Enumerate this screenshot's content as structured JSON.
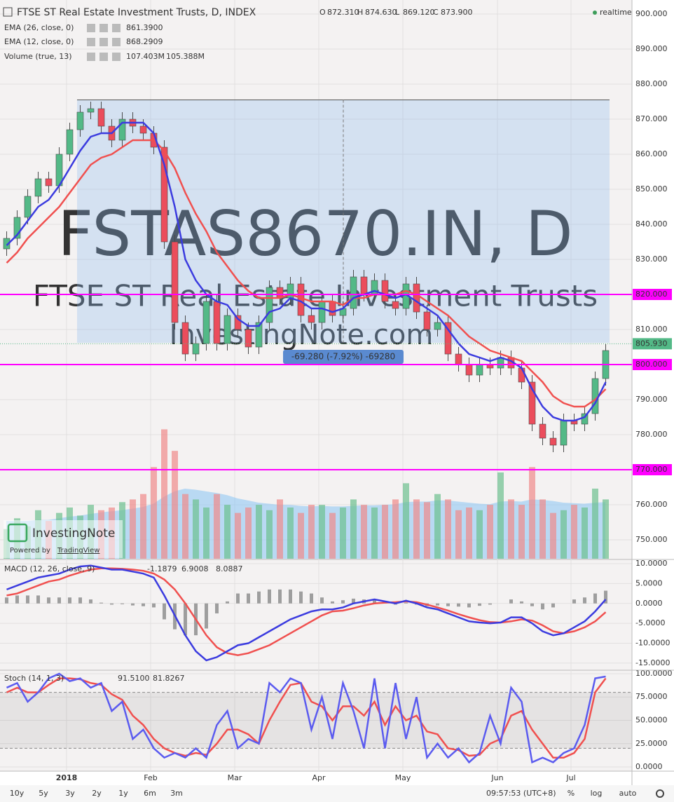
{
  "chart_data": [
    {
      "type": "candlestick",
      "title": "FTSE ST Real Estate Investment Trusts, D, INDEX",
      "ohlc_labels": [
        "O",
        "H",
        "L",
        "C"
      ],
      "ohlc_values": [
        "872.310",
        "874.630",
        "869.120",
        "873.900"
      ],
      "status": "realtime",
      "watermark": [
        "FSTAS8670.IN, D",
        "FTSE ST Real Estate Investment Trusts",
        "InvestingNote.com"
      ],
      "logo": "InvestingNote",
      "powered": "Powered by",
      "powered_link": "TradingView",
      "categories": [
        null,
        null,
        null,
        null,
        null,
        null,
        "2018",
        null,
        null,
        null,
        null,
        null,
        null,
        null,
        "Feb",
        null,
        null,
        null,
        null,
        null,
        null,
        null,
        "Mar",
        null,
        null,
        null,
        null,
        null,
        null,
        null,
        "Apr",
        null,
        null,
        null,
        null,
        null,
        null,
        null,
        "May",
        null,
        null,
        null,
        null,
        null,
        null,
        null,
        null,
        "Jun",
        null,
        null,
        null,
        null,
        null,
        null,
        "Jul",
        null,
        null,
        null
      ],
      "open": [
        833,
        836,
        842,
        848,
        853,
        851,
        860,
        867,
        872,
        873,
        868,
        864,
        870,
        868,
        866,
        862,
        835,
        812,
        803,
        806,
        818,
        806,
        814,
        810,
        805,
        812,
        822,
        819,
        823,
        814,
        812,
        818,
        814,
        816,
        825,
        820,
        824,
        818,
        816,
        823,
        815,
        810,
        812,
        803,
        800,
        797,
        800,
        799,
        802,
        799,
        795,
        783,
        779,
        777,
        784,
        783,
        786,
        796
      ],
      "high": [
        838,
        844,
        850,
        855,
        855,
        862,
        869,
        874,
        875,
        875,
        870,
        872,
        872,
        870,
        868,
        864,
        837,
        814,
        808,
        820,
        820,
        816,
        816,
        812,
        814,
        824,
        824,
        825,
        825,
        816,
        820,
        820,
        818,
        827,
        827,
        826,
        826,
        820,
        825,
        825,
        817,
        814,
        814,
        805,
        802,
        802,
        802,
        804,
        804,
        801,
        797,
        785,
        781,
        786,
        786,
        788,
        798,
        806
      ],
      "low": [
        831,
        834,
        840,
        846,
        849,
        849,
        858,
        865,
        870,
        866,
        862,
        862,
        866,
        864,
        860,
        833,
        810,
        801,
        801,
        804,
        804,
        804,
        808,
        803,
        803,
        810,
        817,
        817,
        812,
        810,
        810,
        812,
        812,
        814,
        818,
        818,
        816,
        814,
        814,
        813,
        808,
        808,
        801,
        798,
        795,
        795,
        797,
        797,
        797,
        793,
        781,
        777,
        775,
        775,
        781,
        781,
        784,
        794
      ],
      "close": [
        836,
        842,
        848,
        853,
        851,
        860,
        867,
        872,
        873,
        868,
        864,
        870,
        868,
        866,
        862,
        835,
        812,
        803,
        806,
        818,
        806,
        814,
        810,
        805,
        812,
        822,
        819,
        823,
        814,
        812,
        818,
        814,
        816,
        825,
        820,
        824,
        818,
        816,
        823,
        815,
        810,
        812,
        803,
        800,
        797,
        800,
        799,
        802,
        799,
        795,
        783,
        779,
        777,
        784,
        783,
        786,
        796,
        804
      ],
      "up_color": "#53b987",
      "down_color": "#eb4d5c",
      "series": [
        {
          "name": "EMA (26, close, 0)",
          "legend_value": "861.3900",
          "color": "#f0504f",
          "values": [
            829,
            832,
            836,
            839,
            842,
            845,
            849,
            853,
            857,
            859,
            860,
            862,
            864,
            864,
            864,
            861,
            856,
            849,
            843,
            838,
            832,
            828,
            824,
            821,
            819,
            819,
            819,
            820,
            819,
            818,
            818,
            818,
            817,
            819,
            819,
            820,
            820,
            820,
            821,
            820,
            818,
            816,
            814,
            811,
            808,
            806,
            804,
            803,
            802,
            801,
            798,
            795,
            791,
            789,
            788,
            788,
            790,
            793
          ]
        },
        {
          "name": "EMA (12, close, 0)",
          "legend_value": "868.2909",
          "color": "#3b3bdf",
          "values": [
            834,
            837,
            841,
            845,
            847,
            851,
            856,
            861,
            865,
            866,
            866,
            869,
            869,
            869,
            866,
            857,
            845,
            830,
            824,
            820,
            818,
            817,
            813,
            811,
            811,
            815,
            816,
            819,
            818,
            816,
            816,
            815,
            816,
            819,
            820,
            821,
            820,
            819,
            820,
            818,
            816,
            814,
            810,
            806,
            803,
            802,
            801,
            802,
            801,
            799,
            793,
            788,
            785,
            784,
            784,
            785,
            789,
            795
          ]
        }
      ],
      "volume": {
        "name": "Volume (true, 13)",
        "legend_values": [
          "107.403M",
          "105.388M"
        ],
        "ylim": [
          0,
          1036
        ],
        "ma_color": "#89c4f4",
        "up_color": "#6cc08f",
        "down_color": "#f08a8a",
        "values": [
          55,
          75,
          60,
          90,
          70,
          85,
          95,
          80,
          100,
          90,
          95,
          105,
          110,
          120,
          170,
          240,
          200,
          120,
          110,
          95,
          120,
          100,
          85,
          95,
          100,
          90,
          110,
          95,
          85,
          100,
          100,
          85,
          95,
          110,
          100,
          95,
          100,
          110,
          140,
          110,
          105,
          120,
          110,
          90,
          95,
          90,
          100,
          160,
          110,
          100,
          170,
          110,
          85,
          90,
          100,
          95,
          130,
          110
        ],
        "ma_values": [
          70,
          70,
          70,
          72,
          72,
          75,
          78,
          80,
          83,
          86,
          88,
          90,
          93,
          96,
          102,
          115,
          125,
          130,
          128,
          125,
          122,
          118,
          112,
          108,
          104,
          102,
          100,
          100,
          98,
          97,
          98,
          97,
          97,
          98,
          99,
          99,
          100,
          101,
          105,
          106,
          106,
          108,
          108,
          106,
          104,
          102,
          101,
          106,
          107,
          106,
          110,
          109,
          107,
          104,
          103,
          102,
          104,
          105
        ]
      },
      "levels": [
        {
          "value": 820,
          "label": "820.000"
        },
        {
          "value": 800,
          "label": "800.000"
        },
        {
          "value": 770,
          "label": "770.000"
        }
      ],
      "level_color": "#ff00ff",
      "last": {
        "value": 805.93,
        "label": "805.930"
      },
      "measure": {
        "from_index": 7,
        "to_index": 57,
        "top": 875.5,
        "bottom": 806.2,
        "label": "-69.280 (-7.92%) -69280"
      },
      "ylim": [
        744.6,
        904
      ],
      "yticks": [
        {
          "value": 750,
          "label": "750.000"
        },
        {
          "value": 760,
          "label": "760.000"
        },
        {
          "value": 770,
          "label": "770.000"
        },
        {
          "value": 780,
          "label": "780.000"
        },
        {
          "value": 790,
          "label": "790.000"
        },
        {
          "value": 800,
          "label": "800.000"
        },
        {
          "value": 810,
          "label": "810.000"
        },
        {
          "value": 820,
          "label": "820.000"
        },
        {
          "value": 830,
          "label": "830.000"
        },
        {
          "value": 840,
          "label": "840.000"
        },
        {
          "value": 850,
          "label": "850.000"
        },
        {
          "value": 860,
          "label": "860.000"
        },
        {
          "value": 870,
          "label": "870.000"
        },
        {
          "value": 880,
          "label": "880.000"
        },
        {
          "value": 890,
          "label": "890.000"
        },
        {
          "value": 900,
          "label": "900.000"
        }
      ]
    },
    {
      "type": "macd",
      "title": "MACD (12, 26, close, 9)",
      "legend_values": [
        "-1.1879",
        "6.9008",
        "8.0887"
      ],
      "histogram": {
        "color": "#9e9e9e",
        "values": [
          1.5,
          2,
          2,
          2,
          1.5,
          1.5,
          1.5,
          1.5,
          1,
          0.2,
          -0.3,
          -0.2,
          -0.5,
          -0.7,
          -1,
          -4,
          -6.5,
          -8,
          -8,
          -6.3,
          -2.5,
          0.5,
          2.5,
          2.5,
          3,
          3.5,
          3.5,
          3.5,
          3,
          2.5,
          1.5,
          0.5,
          0.8,
          1.2,
          1,
          1,
          0.3,
          -0.3,
          0.2,
          -0.3,
          -0.7,
          -0.5,
          -0.7,
          -0.8,
          -1,
          -0.6,
          -0.3,
          0,
          1,
          0.5,
          -0.7,
          -1.5,
          -1,
          0,
          1,
          1.5,
          2.5,
          3.2
        ]
      },
      "macd": {
        "color": "#3b3bdf",
        "values": [
          3.5,
          4.5,
          5.5,
          6.5,
          7,
          7.5,
          8.5,
          9.3,
          9.5,
          9,
          8.5,
          8.5,
          8,
          7.5,
          6.5,
          2,
          -3,
          -8,
          -12,
          -14.3,
          -13.5,
          -12,
          -10.5,
          -10,
          -8.5,
          -7,
          -5.5,
          -4,
          -3,
          -2,
          -1.5,
          -1.5,
          -1,
          0,
          0.5,
          1,
          0.5,
          0,
          0.7,
          0,
          -1,
          -1.5,
          -2.5,
          -3.5,
          -4.5,
          -4.8,
          -5,
          -4.8,
          -3.5,
          -3.5,
          -5,
          -7,
          -8,
          -7.5,
          -6,
          -4.5,
          -2,
          1
        ]
      },
      "signal": {
        "color": "#f0504f",
        "values": [
          2,
          2.5,
          3.5,
          4.5,
          5.5,
          6,
          7,
          7.8,
          8.5,
          8.8,
          8.8,
          8.7,
          8.5,
          8.2,
          7.5,
          6,
          3.5,
          0,
          -4,
          -8,
          -11,
          -12.5,
          -13,
          -12.5,
          -11.5,
          -10.5,
          -9,
          -7.5,
          -6,
          -4.5,
          -3,
          -2,
          -1.8,
          -1.2,
          -0.5,
          0,
          0.2,
          0.3,
          0.5,
          0.3,
          -0.3,
          -1,
          -1.8,
          -2.7,
          -3.5,
          -4.2,
          -4.7,
          -4.8,
          -4.5,
          -4,
          -4.3,
          -5.5,
          -7,
          -7.5,
          -7,
          -6,
          -4.5,
          -2.2
        ]
      },
      "ylim": [
        -16.6,
        10.7
      ],
      "yticks": [
        {
          "value": -15,
          "label": "-15.0000"
        },
        {
          "value": -10,
          "label": "-10.0000"
        },
        {
          "value": -5,
          "label": "-5.0000"
        },
        {
          "value": 0,
          "label": "0.0000"
        },
        {
          "value": 5,
          "label": "5.0000"
        },
        {
          "value": 10,
          "label": "10.0000"
        }
      ]
    },
    {
      "type": "stochastic",
      "title": "Stoch (14, 1, 3)",
      "legend_values": [
        "91.5100",
        "81.8267"
      ],
      "k": {
        "color": "#5b5bef",
        "values": [
          85,
          90,
          70,
          80,
          95,
          100,
          92,
          95,
          85,
          90,
          60,
          70,
          30,
          40,
          20,
          10,
          15,
          10,
          20,
          10,
          45,
          60,
          20,
          30,
          25,
          90,
          80,
          95,
          90,
          40,
          75,
          30,
          90,
          60,
          20,
          95,
          20,
          90,
          30,
          75,
          10,
          25,
          10,
          20,
          5,
          15,
          55,
          25,
          85,
          70,
          5,
          10,
          5,
          15,
          20,
          45,
          95,
          97
        ]
      },
      "d": {
        "color": "#f0504f",
        "values": [
          80,
          85,
          80,
          80,
          88,
          95,
          95,
          94,
          90,
          88,
          78,
          72,
          55,
          45,
          30,
          20,
          15,
          12,
          15,
          13,
          25,
          40,
          40,
          35,
          25,
          50,
          70,
          88,
          90,
          70,
          65,
          50,
          65,
          65,
          55,
          70,
          45,
          65,
          50,
          55,
          38,
          35,
          20,
          18,
          12,
          13,
          25,
          30,
          55,
          60,
          40,
          25,
          10,
          10,
          15,
          30,
          80,
          95
        ]
      },
      "bands": [
        20,
        80
      ],
      "ylim": [
        -4.5,
        103
      ],
      "yticks": [
        {
          "value": 0,
          "label": "0.0000"
        },
        {
          "value": 25,
          "label": "25.0000"
        },
        {
          "value": 50,
          "label": "50.0000"
        },
        {
          "value": 75,
          "label": "75.0000"
        },
        {
          "value": 100,
          "label": "100.0000"
        }
      ]
    }
  ],
  "toolbar": {
    "ranges": [
      "10y",
      "5y",
      "3y",
      "2y",
      "1y",
      "6m",
      "3m"
    ],
    "time": "09:57:53 (UTC+8)",
    "options": [
      "%",
      "log",
      "auto"
    ]
  }
}
